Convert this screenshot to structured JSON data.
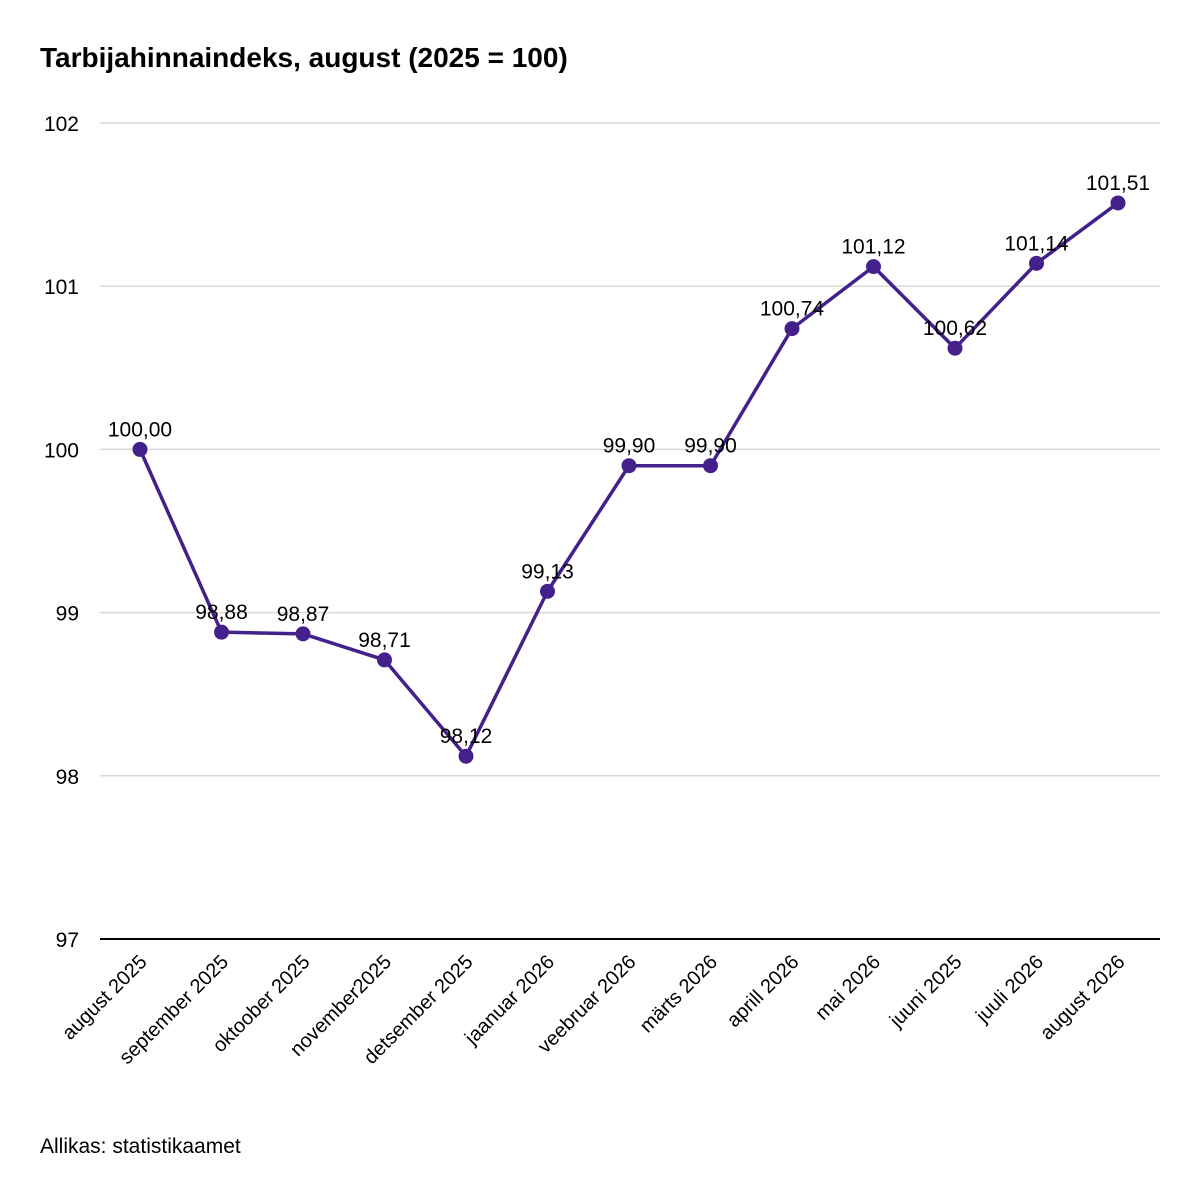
{
  "chart_data": {
    "type": "line",
    "title": "Tarbijahinnaindeks, august (2025 = 100)",
    "source": "Allikas: statistikaamet",
    "categories": [
      "august 2025",
      "september 2025",
      "oktoober 2025",
      "november2025",
      "detsember 2025",
      "jaanuar 2026",
      "veebruar 2026",
      "märts 2026",
      "aprill 2026",
      "mai 2026",
      "juuni 2025",
      "juuli 2026",
      "august 2026"
    ],
    "series": [
      {
        "values": [
          100.0,
          98.88,
          98.87,
          98.71,
          98.12,
          99.13,
          99.9,
          99.9,
          100.74,
          101.12,
          100.62,
          101.14,
          101.51
        ],
        "labels": [
          "100,00",
          "98,88",
          "98,87",
          "98,71",
          "98,12",
          "99,13",
          "99,90",
          "99,90",
          "100,74",
          "101,12",
          "100,62",
          "101,14",
          "101,51"
        ],
        "color": "#44218a"
      }
    ],
    "ylim": [
      97,
      102
    ],
    "yticks": [
      97,
      98,
      99,
      100,
      101,
      102
    ],
    "grid": true,
    "legend": "none",
    "gridline_color": "#d9d9d9",
    "axis_color": "#000000"
  }
}
